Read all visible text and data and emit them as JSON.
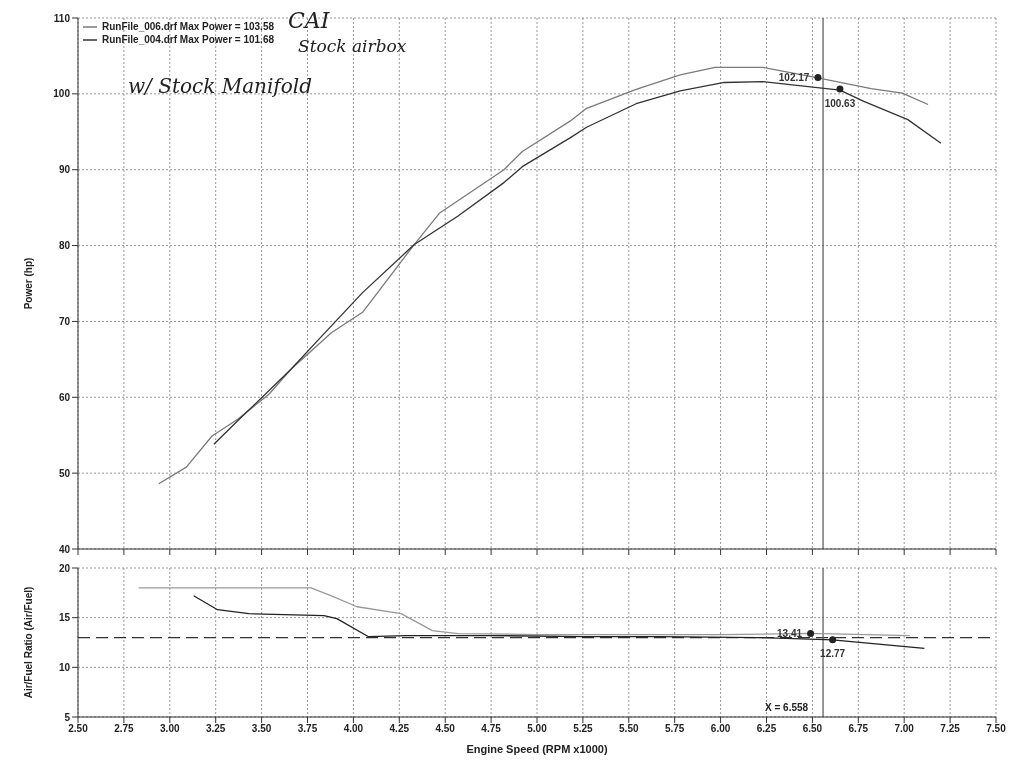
{
  "chart_data": [
    {
      "type": "line",
      "ylabel": "Power (hp)",
      "xlim": [
        2.5,
        7.5
      ],
      "xticks": [
        2.5,
        2.75,
        3,
        3.25,
        3.5,
        3.75,
        4,
        4.25,
        4.5,
        4.75,
        5,
        5.25,
        5.5,
        5.75,
        6,
        6.25,
        6.5,
        6.75,
        7,
        7.25,
        7.5
      ],
      "ylim": [
        40,
        110
      ],
      "yticks": [
        40,
        50,
        60,
        70,
        80,
        90,
        100,
        110
      ],
      "tick_labels": "y",
      "grid": true,
      "legend": "top left",
      "line_style": "solid",
      "marker": "none",
      "series": [
        {
          "name": "RunFile_006.drf Max Power = 103.58",
          "color": "#7a7a7a",
          "x": [
            2.94,
            3.09,
            3.23,
            3.37,
            3.54,
            3.66,
            3.88,
            4.05,
            4.33,
            4.47,
            4.82,
            4.92,
            5.18,
            5.27,
            5.54,
            5.78,
            5.97,
            6.23,
            6.53,
            6.82,
            6.99,
            7.13
          ],
          "values": [
            48.6,
            50.8,
            54.9,
            57.1,
            60.4,
            63.7,
            68.5,
            71.2,
            80.1,
            84.3,
            90,
            92.4,
            96.4,
            98.1,
            100.6,
            102.5,
            103.5,
            103.5,
            102.1,
            100.7,
            100.1,
            98.6
          ]
        },
        {
          "name": "RunFile_004.drf Max Power = 101.68",
          "color": "#333333",
          "x": [
            3.24,
            3.37,
            3.66,
            3.81,
            4.05,
            4.33,
            4.57,
            4.82,
            4.92,
            5.18,
            5.27,
            5.54,
            5.78,
            6.02,
            6.23,
            6.65,
            6.78,
            7.02,
            7.2
          ],
          "values": [
            53.8,
            56.9,
            63.7,
            67.6,
            73.8,
            80.1,
            83.9,
            88.3,
            90.4,
            94.2,
            95.6,
            98.7,
            100.4,
            101.5,
            101.6,
            100.5,
            99,
            96.6,
            93.5
          ]
        }
      ],
      "ref_lines": [
        {
          "axis": "x",
          "value": 6.558,
          "color": "#555555"
        }
      ],
      "annotations": [
        "CAI",
        "Stock airbox",
        "w/ Stock Manifold",
        {
          "text": "102.17",
          "x": 6.53,
          "y": 102.17
        },
        {
          "text": "100.63",
          "x": 6.65,
          "y": 100.63
        }
      ]
    },
    {
      "type": "line",
      "xlabel": "Engine Speed (RPM x1000)",
      "ylabel": "Air/Fuel Ratio (Air/Fuel)",
      "xlim": [
        2.5,
        7.5
      ],
      "xticks": [
        {
          "value": 2.5,
          "label": "2.50"
        },
        {
          "value": 2.75,
          "label": "2.75"
        },
        {
          "value": 3,
          "label": "3.00"
        },
        {
          "value": 3.25,
          "label": "3.25"
        },
        {
          "value": 3.5,
          "label": "3.50"
        },
        {
          "value": 3.75,
          "label": "3.75"
        },
        {
          "value": 4,
          "label": "4.00"
        },
        {
          "value": 4.25,
          "label": "4.25"
        },
        {
          "value": 4.5,
          "label": "4.50"
        },
        {
          "value": 4.75,
          "label": "4.75"
        },
        {
          "value": 5,
          "label": "5.00"
        },
        {
          "value": 5.25,
          "label": "5.25"
        },
        {
          "value": 5.5,
          "label": "5.50"
        },
        {
          "value": 5.75,
          "label": "5.75"
        },
        {
          "value": 6,
          "label": "6.00"
        },
        {
          "value": 6.25,
          "label": "6.25"
        },
        {
          "value": 6.5,
          "label": "6.50"
        },
        {
          "value": 6.75,
          "label": "6.75"
        },
        {
          "value": 7,
          "label": "7.00"
        },
        {
          "value": 7.25,
          "label": "7.25"
        },
        {
          "value": 7.5,
          "label": "7.50"
        }
      ],
      "ylim": [
        5,
        20
      ],
      "yticks": [
        5,
        10,
        15,
        20
      ],
      "grid": true,
      "line_style": "solid",
      "marker": "none",
      "series": [
        {
          "color": "#999999",
          "x": [
            2.83,
            3.77,
            3.88,
            4.02,
            4.26,
            4.33,
            4.43,
            4.57,
            5.0,
            5.5,
            6.0,
            6.49,
            7.03
          ],
          "values": [
            18,
            18,
            17.2,
            16.1,
            15.4,
            14.7,
            13.7,
            13.4,
            13.3,
            13.3,
            13.3,
            13.41,
            13.2
          ]
        },
        {
          "color": "#222222",
          "x": [
            3.13,
            3.26,
            3.43,
            3.84,
            3.91,
            4.08,
            4.29,
            4.75,
            5.25,
            5.67,
            6.2,
            6.61,
            7.11
          ],
          "values": [
            17.2,
            15.8,
            15.4,
            15.2,
            14.9,
            13.1,
            13.2,
            13.2,
            13.1,
            13.1,
            13,
            12.77,
            11.9
          ]
        }
      ],
      "ref_lines": [
        {
          "axis": "y",
          "value": 13,
          "line_style": "dashed",
          "color": "#333333"
        },
        {
          "axis": "x",
          "value": 6.558,
          "label": "X = 6.558",
          "color": "#555555"
        }
      ],
      "annotations": [
        {
          "text": "13.41",
          "x": 6.49,
          "y": 13.41
        },
        {
          "text": "12.77",
          "x": 6.61,
          "y": 12.77
        }
      ]
    }
  ]
}
